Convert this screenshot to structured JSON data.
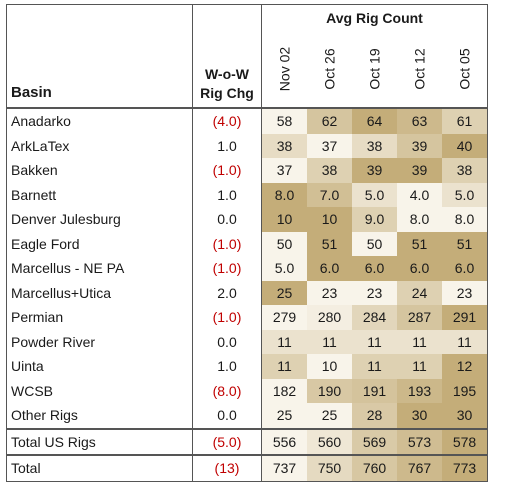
{
  "header": {
    "basin": "Basin",
    "change_line1": "W-o-W",
    "change_line2": "Rig Chg",
    "group": "Avg Rig Count",
    "dates": [
      "Nov 02",
      "Oct 26",
      "Oct 19",
      "Oct 12",
      "Oct 05"
    ]
  },
  "colors": {
    "negative_text": "#c00000",
    "heat_light": "#f8f4ea",
    "heat_dark": "#c4ad79"
  },
  "rows": [
    {
      "basin": "Anadarko",
      "change": "(4.0)",
      "neg": true,
      "values": [
        "58",
        "62",
        "64",
        "63",
        "61"
      ]
    },
    {
      "basin": "ArkLaTex",
      "change": "1.0",
      "neg": false,
      "values": [
        "38",
        "37",
        "38",
        "39",
        "40"
      ]
    },
    {
      "basin": "Bakken",
      "change": "(1.0)",
      "neg": true,
      "values": [
        "37",
        "38",
        "39",
        "39",
        "38"
      ]
    },
    {
      "basin": "Barnett",
      "change": "1.0",
      "neg": false,
      "values": [
        "8.0",
        "7.0",
        "5.0",
        "4.0",
        "5.0"
      ]
    },
    {
      "basin": "Denver Julesburg",
      "change": "0.0",
      "neg": false,
      "values": [
        "10",
        "10",
        "9.0",
        "8.0",
        "8.0"
      ]
    },
    {
      "basin": "Eagle Ford",
      "change": "(1.0)",
      "neg": true,
      "values": [
        "50",
        "51",
        "50",
        "51",
        "51"
      ]
    },
    {
      "basin": "Marcellus - NE PA",
      "change": "(1.0)",
      "neg": true,
      "values": [
        "5.0",
        "6.0",
        "6.0",
        "6.0",
        "6.0"
      ]
    },
    {
      "basin": "Marcellus+Utica",
      "change": "2.0",
      "neg": false,
      "values": [
        "25",
        "23",
        "23",
        "24",
        "23"
      ]
    },
    {
      "basin": "Permian",
      "change": "(1.0)",
      "neg": true,
      "values": [
        "279",
        "280",
        "284",
        "287",
        "291"
      ]
    },
    {
      "basin": "Powder River",
      "change": "0.0",
      "neg": false,
      "values": [
        "11",
        "11",
        "11",
        "11",
        "11"
      ]
    },
    {
      "basin": "Uinta",
      "change": "1.0",
      "neg": false,
      "values": [
        "11",
        "10",
        "11",
        "11",
        "12"
      ]
    },
    {
      "basin": "WCSB",
      "change": "(8.0)",
      "neg": true,
      "values": [
        "182",
        "190",
        "191",
        "193",
        "195"
      ]
    },
    {
      "basin": "Other Rigs",
      "change": "0.0",
      "neg": false,
      "values": [
        "25",
        "25",
        "28",
        "30",
        "30"
      ]
    }
  ],
  "totals": [
    {
      "basin": "Total US Rigs",
      "change": "(5.0)",
      "neg": true,
      "values": [
        "556",
        "560",
        "569",
        "573",
        "578"
      ]
    },
    {
      "basin": "Total",
      "change": "(13)",
      "neg": true,
      "values": [
        "737",
        "750",
        "760",
        "767",
        "773"
      ]
    }
  ]
}
